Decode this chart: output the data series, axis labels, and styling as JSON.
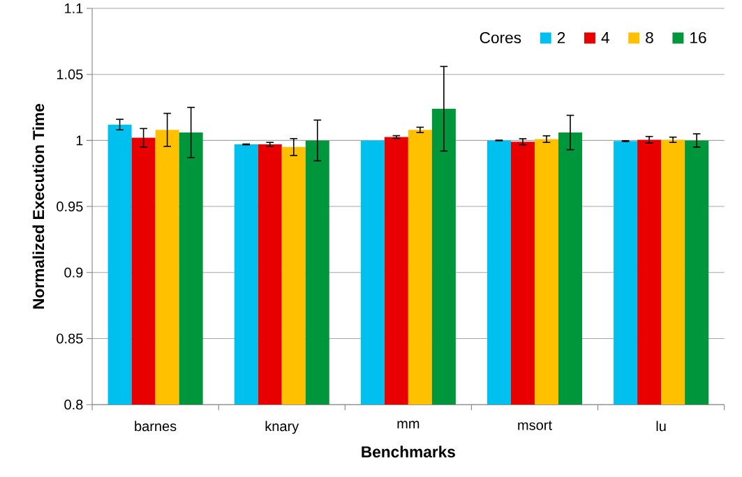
{
  "chart_data": {
    "type": "bar",
    "xlabel": "Benchmarks",
    "ylabel": "Normalized Execution Time",
    "legend_title": "Cores",
    "categories": [
      "barnes",
      "knary",
      "mm",
      "msort",
      "lu"
    ],
    "series": [
      {
        "name": "2",
        "color": "#00c0f0",
        "values": [
          1.012,
          0.997,
          1.0,
          1.0,
          0.9995
        ],
        "errors": [
          0.004,
          0.0003,
          null,
          0.0002,
          0.0003
        ]
      },
      {
        "name": "4",
        "color": "#e80000",
        "values": [
          1.002,
          0.997,
          1.0026,
          0.999,
          1.0005
        ],
        "errors": [
          0.007,
          0.0015,
          0.001,
          0.0023,
          0.0025
        ]
      },
      {
        "name": "8",
        "color": "#ffc000",
        "values": [
          1.008,
          0.995,
          1.008,
          1.001,
          1.0005
        ],
        "errors": [
          0.0125,
          0.0064,
          0.002,
          0.0025,
          0.002
        ]
      },
      {
        "name": "16",
        "color": "#00963c",
        "values": [
          1.006,
          1.0,
          1.024,
          1.006,
          1.0
        ],
        "errors": [
          0.019,
          0.0154,
          0.032,
          0.013,
          0.005
        ]
      }
    ],
    "ylim": [
      0.8,
      1.1
    ],
    "yticks": [
      0.8,
      0.85,
      0.9,
      0.95,
      1,
      1.05,
      1.1
    ],
    "grid": "y",
    "legend": "top right"
  }
}
